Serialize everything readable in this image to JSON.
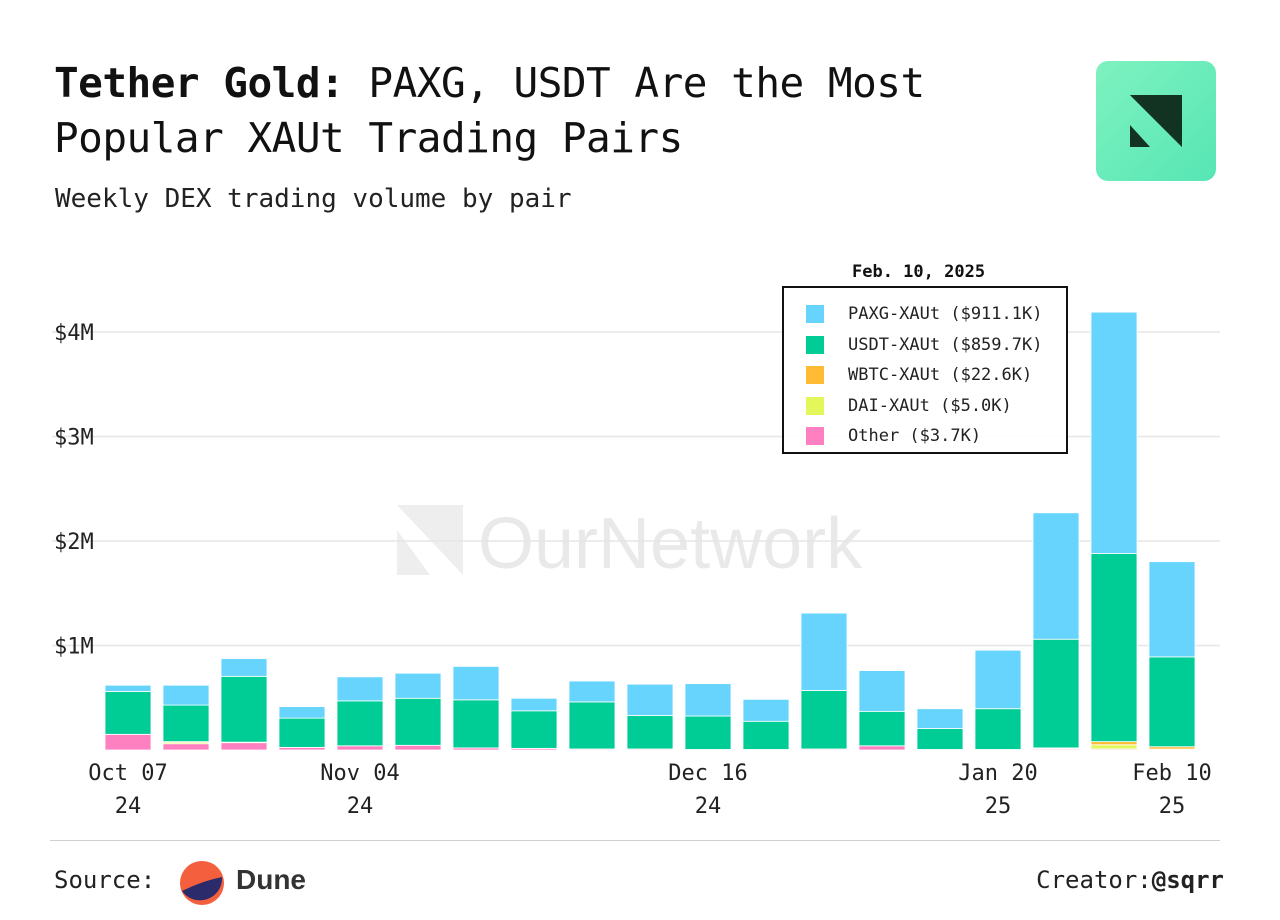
{
  "header": {
    "title_bold": "Tether Gold:",
    "title_rest": " PAXG, USDT Are the Most Popular XAUt Trading Pairs",
    "subtitle": "Weekly DEX trading volume by pair"
  },
  "logo": {
    "icon": "ournetwork-logo-icon",
    "bg": "#6ff0bd",
    "fg": "#123322"
  },
  "watermark": {
    "text": "OurNetwork"
  },
  "legend": {
    "title": "Feb. 10, 2025",
    "items": [
      {
        "label": "PAXG-XAUt ($911.1K)",
        "color": "#66d4fc"
      },
      {
        "label": "USDT-XAUt ($859.7K)",
        "color": "#00cc95"
      },
      {
        "label": "WBTC-XAUt ($22.6K)",
        "color": "#ffbb33"
      },
      {
        "label": "DAI-XAUt ($5.0K)",
        "color": "#e3f75a"
      },
      {
        "label": "Other ($3.7K)",
        "color": "#ff80c0"
      }
    ]
  },
  "chart_data": {
    "type": "bar",
    "stacked": true,
    "unit": "USD",
    "ylim": [
      0,
      4300000
    ],
    "yticks": [
      {
        "value": 1000000,
        "label": "$1M"
      },
      {
        "value": 2000000,
        "label": "$2M"
      },
      {
        "value": 3000000,
        "label": "$3M"
      },
      {
        "value": 4000000,
        "label": "$4M"
      }
    ],
    "grid": true,
    "legend_position": "top-right",
    "categories": [
      "2024-10-07",
      "2024-10-14",
      "2024-10-21",
      "2024-10-28",
      "2024-11-04",
      "2024-11-11",
      "2024-11-18",
      "2024-11-25",
      "2024-12-02",
      "2024-12-09",
      "2024-12-16",
      "2024-12-23",
      "2024-12-30",
      "2025-01-06",
      "2025-01-13",
      "2025-01-20",
      "2025-01-27",
      "2025-02-03",
      "2025-02-10"
    ],
    "xticks": [
      {
        "index": 0,
        "line1": "Oct 07",
        "line2": "24"
      },
      {
        "index": 4,
        "line1": "Nov 04",
        "line2": "24"
      },
      {
        "index": 10,
        "line1": "Dec 16",
        "line2": "24"
      },
      {
        "index": 15,
        "line1": "Jan 20",
        "line2": "25"
      },
      {
        "index": 18,
        "line1": "Feb 10",
        "line2": "25"
      }
    ],
    "series": [
      {
        "name": "Other",
        "color": "#ff80c0",
        "values": [
          150000,
          60000,
          70000,
          25000,
          40000,
          45000,
          20000,
          15000,
          10000,
          10000,
          5000,
          5000,
          10000,
          40000,
          5000,
          5000,
          10000,
          10000,
          3700
        ]
      },
      {
        "name": "DAI-XAUt",
        "color": "#e3f75a",
        "values": [
          0,
          15000,
          0,
          0,
          0,
          0,
          0,
          0,
          0,
          0,
          0,
          0,
          0,
          0,
          0,
          0,
          5000,
          40000,
          5000
        ]
      },
      {
        "name": "WBTC-XAUt",
        "color": "#ffbb33",
        "values": [
          0,
          5000,
          5000,
          0,
          0,
          0,
          0,
          0,
          0,
          0,
          0,
          0,
          0,
          0,
          0,
          0,
          5000,
          30000,
          22600
        ]
      },
      {
        "name": "USDT-XAUt",
        "color": "#00cc95",
        "values": [
          410000,
          350000,
          630000,
          280000,
          430000,
          450000,
          460000,
          360000,
          450000,
          320000,
          320000,
          270000,
          560000,
          330000,
          200000,
          390000,
          1040000,
          1800000,
          859700
        ]
      },
      {
        "name": "PAXG-XAUt",
        "color": "#66d4fc",
        "values": [
          60000,
          190000,
          170000,
          110000,
          230000,
          240000,
          320000,
          120000,
          200000,
          300000,
          310000,
          210000,
          740000,
          390000,
          190000,
          560000,
          1210000,
          2310000,
          911100
        ]
      }
    ]
  },
  "footer": {
    "source_label": "Source:",
    "source_name": "Dune",
    "source_icon": "dune-logo-icon",
    "creator_label": "Creator:",
    "creator_handle": "@sqrr"
  }
}
